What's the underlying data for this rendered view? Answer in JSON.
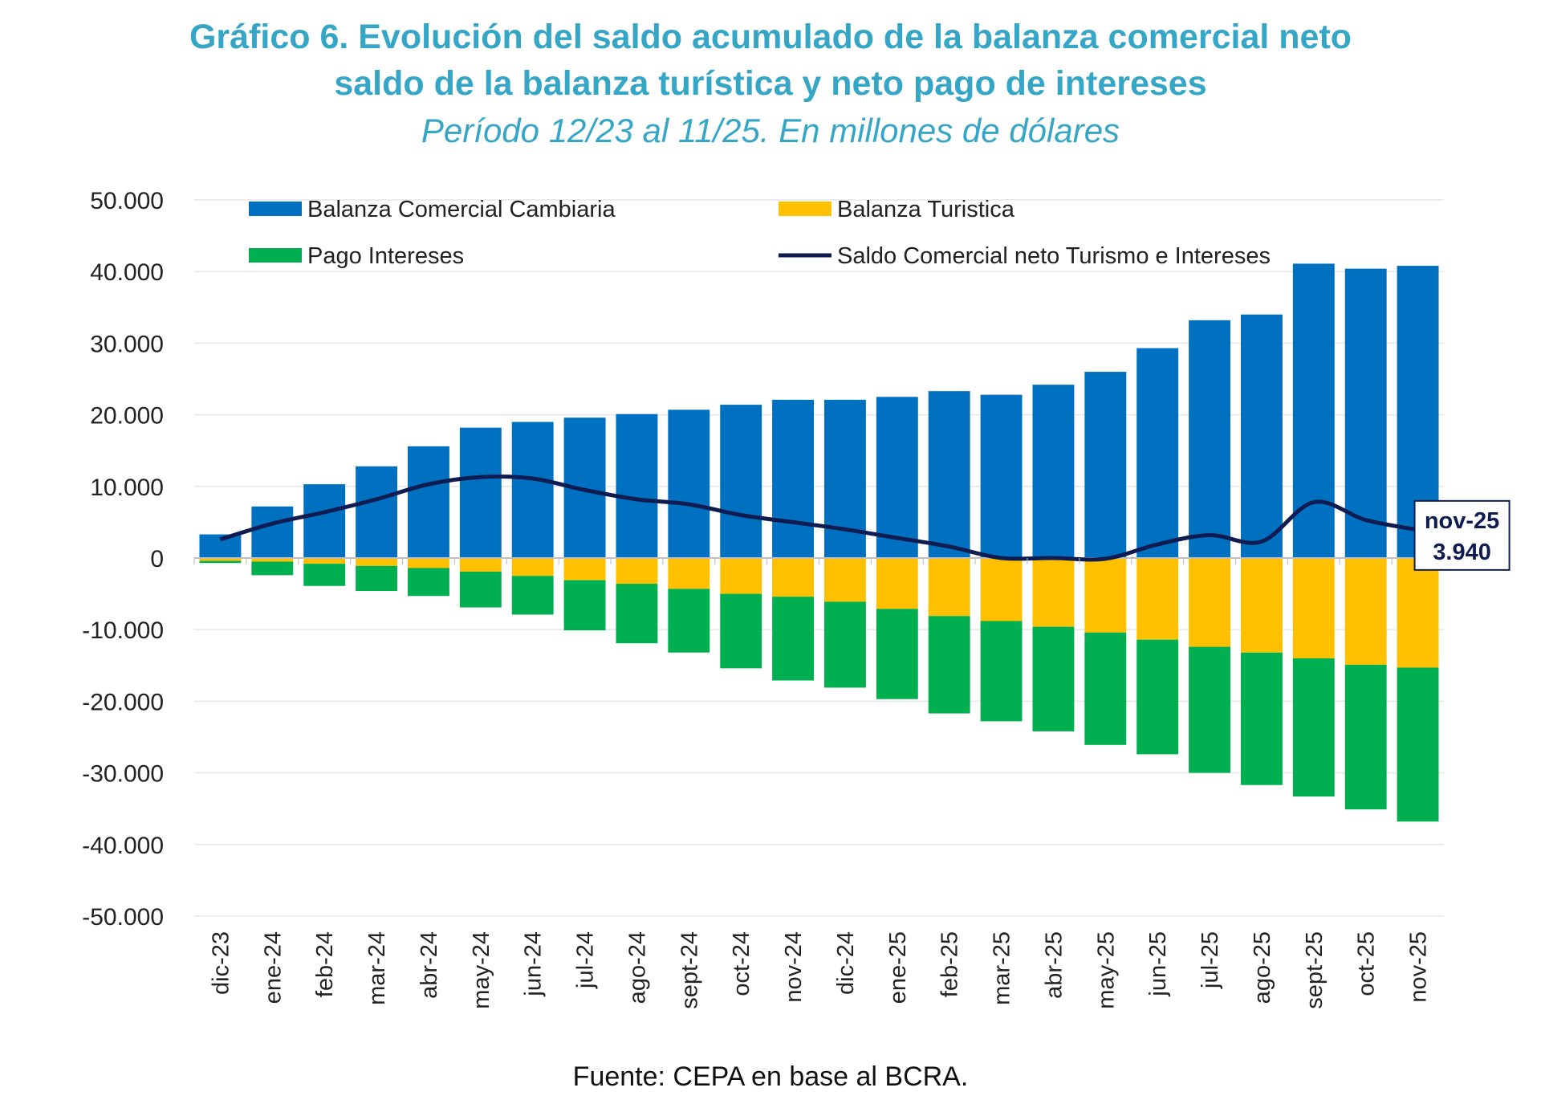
{
  "chart_data": {
    "type": "bar",
    "title": "Gráfico 6. Evolución del saldo acumulado de la balanza comercial neto saldo de la balanza turística y neto pago de intereses",
    "title_lines": [
      "Gráfico 6. Evolución del saldo acumulado de la balanza comercial neto",
      "saldo de la balanza turística y neto pago de intereses"
    ],
    "subtitle": "Período 12/23 al 11/25. En millones de dólares",
    "source": "Fuente: CEPA en base al BCRA.",
    "stacked": true,
    "ylim": [
      -50000,
      50000
    ],
    "yticks": [
      50000,
      40000,
      30000,
      20000,
      10000,
      0,
      -10000,
      -20000,
      -30000,
      -40000,
      -50000
    ],
    "ytick_labels": [
      "50.000",
      "40.000",
      "30.000",
      "20.000",
      "10.000",
      "0",
      "-10.000",
      "-20.000",
      "-30.000",
      "-40.000",
      "-50.000"
    ],
    "grid": true,
    "legend_position": "top",
    "categories": [
      "dic-23",
      "ene-24",
      "feb-24",
      "mar-24",
      "abr-24",
      "may-24",
      "jun-24",
      "jul-24",
      "ago-24",
      "sept-24",
      "oct-24",
      "nov-24",
      "dic-24",
      "ene-25",
      "feb-25",
      "mar-25",
      "abr-25",
      "may-25",
      "jun-25",
      "jul-25",
      "ago-25",
      "sept-25",
      "oct-25",
      "nov-25"
    ],
    "series": [
      {
        "name": "Balanza Comercial Cambiaria",
        "kind": "bar",
        "color": "#0070c0",
        "values": [
          3300,
          7200,
          10300,
          12800,
          15600,
          18200,
          19000,
          19600,
          20100,
          20700,
          21400,
          22100,
          22100,
          22500,
          23300,
          22800,
          24200,
          26000,
          29300,
          33200,
          34000,
          41100,
          40400,
          40800
        ]
      },
      {
        "name": "Balanza Turistica",
        "kind": "bar",
        "color": "#ffc000",
        "values": [
          -400,
          -500,
          -800,
          -1100,
          -1400,
          -1900,
          -2500,
          -3100,
          -3600,
          -4300,
          -5000,
          -5400,
          -6100,
          -7100,
          -8100,
          -8800,
          -9600,
          -10400,
          -11400,
          -12400,
          -13200,
          -14000,
          -14900,
          -15300
        ]
      },
      {
        "name": "Pago Intereses",
        "kind": "bar",
        "color": "#00b050",
        "values": [
          -300,
          -1900,
          -3100,
          -3500,
          -3900,
          -5000,
          -5400,
          -7000,
          -8300,
          -8900,
          -10400,
          -11700,
          -12000,
          -12600,
          -13600,
          -14000,
          -14600,
          -15700,
          -16000,
          -17600,
          -18500,
          -19300,
          -20200,
          -21500
        ]
      },
      {
        "name": "Saldo Comercial neto Turismo e Intereses",
        "kind": "line",
        "color": "#0f1c52",
        "values": [
          2600,
          4800,
          6400,
          8200,
          10300,
          11300,
          11100,
          9500,
          8200,
          7500,
          6000,
          5000,
          4000,
          2800,
          1600,
          0,
          0,
          -100,
          1900,
          3200,
          2300,
          7800,
          5300,
          3940
        ]
      }
    ],
    "annotation": {
      "category": "nov-25",
      "label_line1": "nov-25",
      "label_line2": "3.940",
      "value": 3940
    }
  }
}
